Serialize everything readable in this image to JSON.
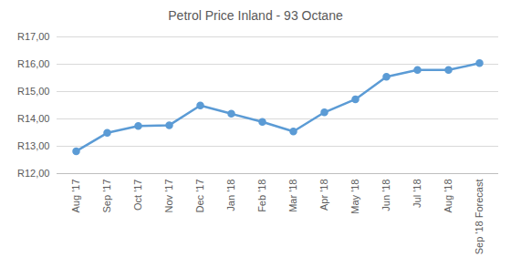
{
  "chart_data": {
    "type": "line",
    "title": "Petrol Price Inland - 93 Octane",
    "categories": [
      "Aug '17",
      "Sep '17",
      "Oct '17",
      "Nov '17",
      "Dec '17",
      "Jan '18",
      "Feb '18",
      "Mar '18",
      "Apr '18",
      "May '18",
      "Jun '18",
      "Jul '18",
      "Aug '18",
      "Sep '18 Forecast"
    ],
    "values": [
      12.82,
      13.49,
      13.74,
      13.77,
      14.49,
      14.19,
      13.89,
      13.54,
      14.24,
      14.72,
      15.54,
      15.79,
      15.79,
      16.04
    ],
    "color": "#5b9bd5",
    "marker": "circle",
    "ylim": [
      12,
      17
    ],
    "yticks": [
      {
        "value": 12,
        "label": "R12,00"
      },
      {
        "value": 13,
        "label": "R13,00"
      },
      {
        "value": 14,
        "label": "R14,00"
      },
      {
        "value": 15,
        "label": "R15,00"
      },
      {
        "value": 16,
        "label": "R16,00"
      },
      {
        "value": 17,
        "label": "R17,00"
      }
    ],
    "grid": true
  }
}
